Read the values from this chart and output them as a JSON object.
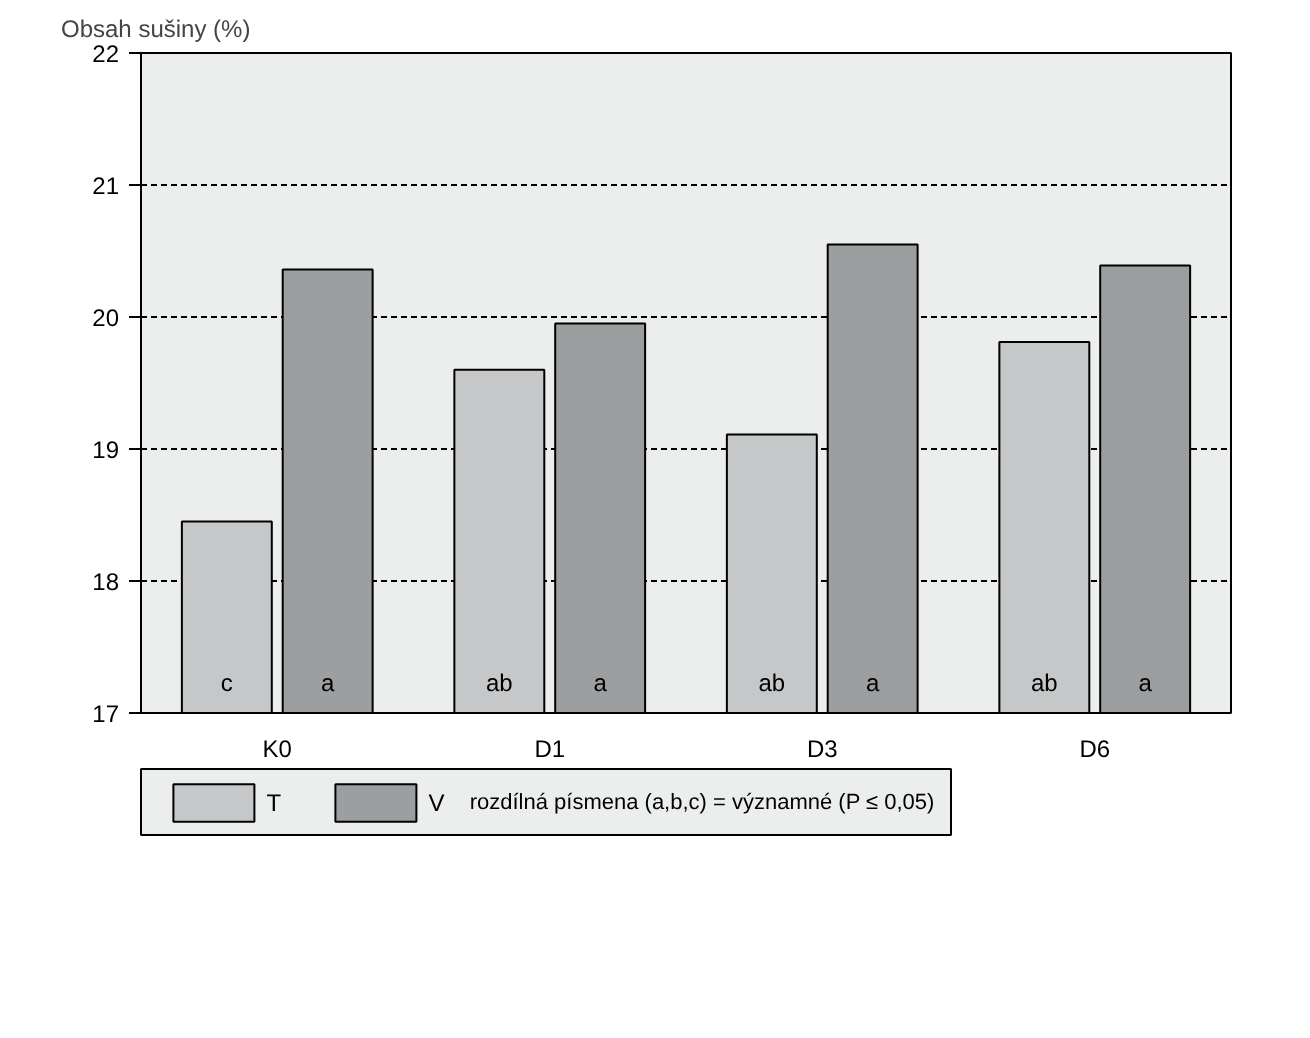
{
  "chart_data": {
    "type": "bar",
    "ylabel": "Obsah sušiny (%)",
    "categories": [
      "K0",
      "D1",
      "D3",
      "D6"
    ],
    "series": [
      {
        "name": "T",
        "color": "#c6c7c9",
        "values": [
          18.45,
          19.6,
          19.11,
          19.81
        ],
        "value_labels": [
          "c",
          "ab",
          "ab",
          "ab"
        ]
      },
      {
        "name": "V",
        "color": "#9d9ea0",
        "values": [
          20.36,
          19.95,
          20.55,
          20.39
        ],
        "value_labels": [
          "a",
          "a",
          "a",
          "a"
        ]
      }
    ],
    "ylim": [
      17,
      22
    ],
    "yticks": [
      17,
      18,
      19,
      20,
      21,
      22
    ],
    "grid": "y",
    "legend": "bottom",
    "annotations": [
      "rozdílná písmena (a,b,c) = významné (P ≤ 0,05)"
    ]
  }
}
